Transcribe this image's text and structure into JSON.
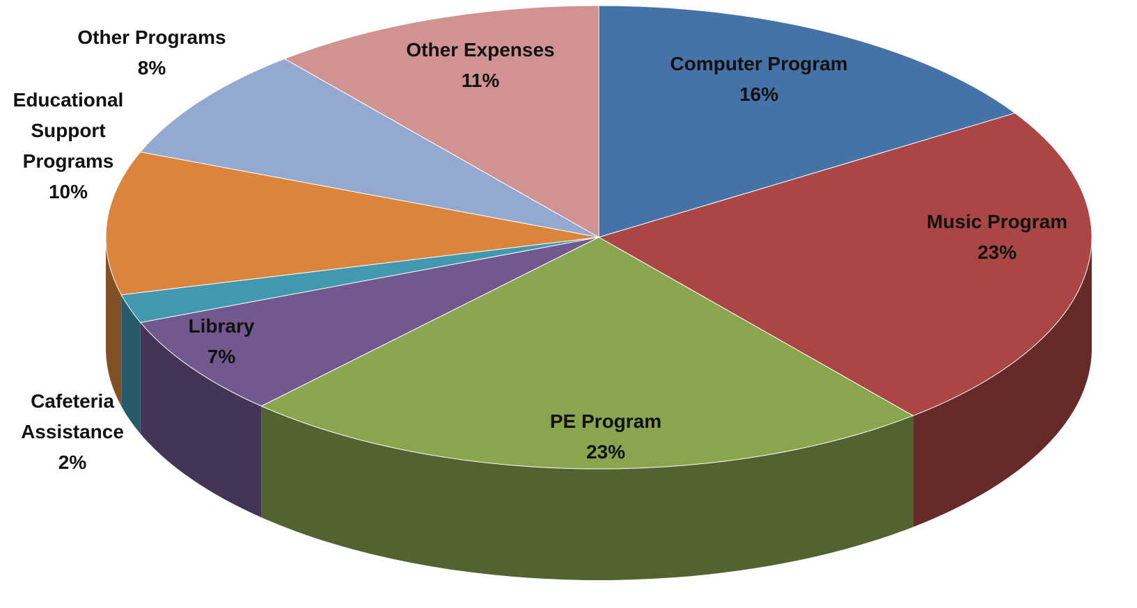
{
  "chart_data": {
    "type": "pie",
    "categories": [
      "Computer Program",
      "Music Program",
      "PE Program",
      "Library",
      "Cafeteria Assistance",
      "Educational Support Programs",
      "Other Programs",
      "Other Expenses"
    ],
    "values": [
      16,
      23,
      23,
      7,
      2,
      10,
      8,
      11
    ],
    "value_labels": [
      "16%",
      "23%",
      "23%",
      "7%",
      "2%",
      "10%",
      "8%",
      "11%"
    ],
    "colors": [
      "#4572a7",
      "#aa4643",
      "#89a54e",
      "#71588f",
      "#4198af",
      "#db843d",
      "#93a9cf",
      "#d19392"
    ],
    "three_d": true
  }
}
